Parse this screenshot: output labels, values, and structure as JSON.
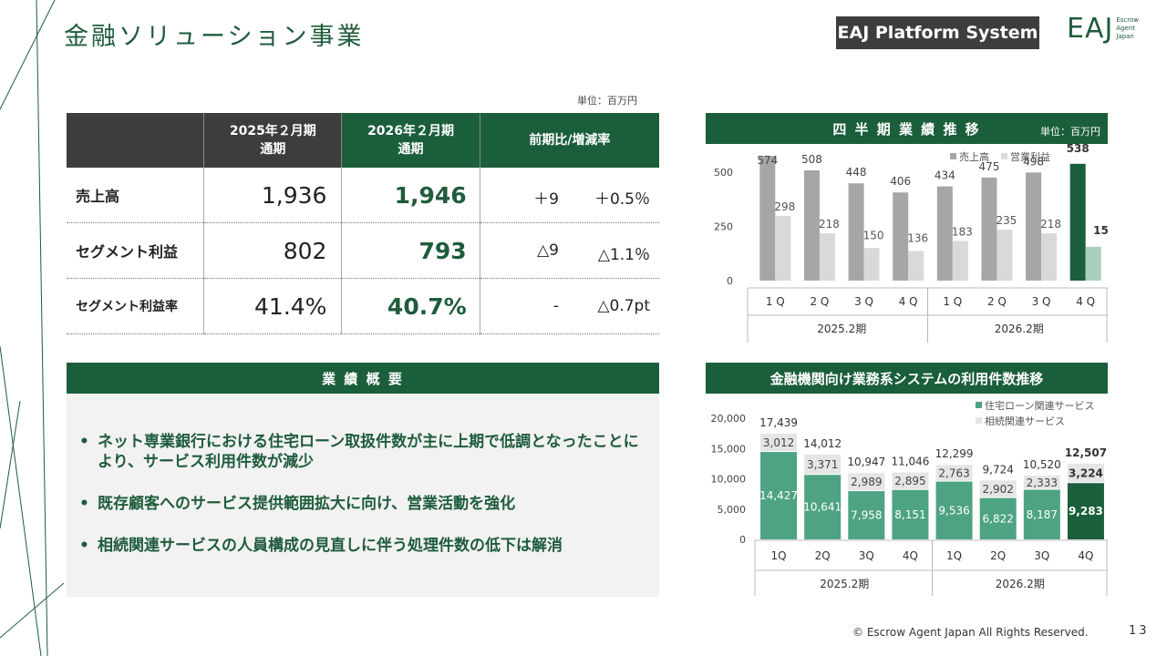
{
  "page": {
    "title": "金融ソリューション事業",
    "badge": "EAJ Platform System",
    "logo": {
      "main": "EAJ",
      "sub1": "Escrow",
      "sub2": "Agent",
      "sub3": "Japan"
    },
    "footer": "© Escrow Agent Japan All Rights Reserved.",
    "page_number": "13"
  },
  "colors": {
    "dark_green": "#1b5e3b",
    "mid_green": "#4da382",
    "pale_green": "#aacfbd",
    "dark_gray": "#3d3d3d",
    "gray": "#a6a6a6",
    "light_gray": "#d9d9d9"
  },
  "table": {
    "unit": "単位：百万円",
    "headers": {
      "col1_line1": "2025年２月期",
      "col1_line2": "通期",
      "col2_line1": "2026年２月期",
      "col2_line2": "通期",
      "col3": "前期比/増減率"
    },
    "rows": [
      {
        "label": "売上高",
        "v2025": "1,936",
        "v2026": "1,946",
        "diff": "＋9",
        "rate": "＋0.5％"
      },
      {
        "label": "セグメント利益",
        "v2025": "802",
        "v2026": "793",
        "diff": "△9",
        "rate": "△1.1％"
      },
      {
        "label": "セグメント利益率",
        "v2025": "41.4%",
        "v2026": "40.7%",
        "diff": "-",
        "rate": "△0.7pt"
      }
    ]
  },
  "summary": {
    "heading": "業 績 概 要",
    "bullet": "•",
    "items": [
      "ネット専業銀行における住宅ローン取扱件数が主に上期で低調となったことにより、サービス利用件数が減少",
      "既存顧客へのサービス提供範囲拡大に向け、営業活動を強化",
      "相続関連サービスの人員構成の見直しに伴う処理件数の低下は解消"
    ]
  },
  "chart1_header": {
    "title": "四 半 期 業 績 推 移",
    "unit": "単位：百万円"
  },
  "chart2_header": {
    "title": "金融機関向け業務系システムの利用件数推移"
  },
  "chart_data": [
    {
      "type": "bar",
      "title": "四 半 期 業 績 推 移",
      "categories": [
        "1Q",
        "2Q",
        "3Q",
        "4Q",
        "1Q",
        "2Q",
        "3Q",
        "4Q"
      ],
      "category_labels": [
        "1 Q",
        "2 Q",
        "3 Q",
        "4 Q",
        "1 Q",
        "2 Q",
        "3 Q",
        "4 Q"
      ],
      "groups": [
        "2025.2期",
        "2026.2期"
      ],
      "series": [
        {
          "name": "売上高",
          "values": [
            574,
            508,
            448,
            406,
            434,
            475,
            498,
            538
          ]
        },
        {
          "name": "営業利益",
          "values": [
            298,
            218,
            150,
            136,
            183,
            235,
            218,
            156
          ]
        }
      ],
      "yticks": [
        "500",
        "250",
        "0"
      ],
      "ylim": [
        0,
        600
      ],
      "legend": "top-right"
    },
    {
      "type": "bar",
      "stacked": true,
      "title": "金融機関向け業務系システムの利用件数推移",
      "categories": [
        "1Q",
        "2Q",
        "3Q",
        "4Q",
        "1Q",
        "2Q",
        "3Q",
        "4Q"
      ],
      "groups": [
        "2025.2期",
        "2026.2期"
      ],
      "series": [
        {
          "name": "住宅ローン関連サービス",
          "values": [
            14427,
            10641,
            7958,
            8151,
            9536,
            6822,
            8187,
            9283
          ],
          "labels": [
            "14,427",
            "10,641",
            "7,958",
            "8,151",
            "9,536",
            "6,822",
            "8,187",
            "9,283"
          ]
        },
        {
          "name": "相続関連サービス",
          "values": [
            3012,
            3371,
            2989,
            2895,
            2763,
            2902,
            2333,
            3224
          ],
          "labels": [
            "3,012",
            "3,371",
            "2,989",
            "2,895",
            "2,763",
            "2,902",
            "2,333",
            "3,224"
          ]
        }
      ],
      "totals": [
        17439,
        14012,
        10947,
        11046,
        12299,
        9724,
        10520,
        12507
      ],
      "total_labels": [
        "17,439",
        "14,012",
        "10,947",
        "11,046",
        "12,299",
        "9,724",
        "10,520",
        "12,507"
      ],
      "yticks": [
        "20,000",
        "15,000",
        "10,000",
        "5,000",
        "0"
      ],
      "ylim": [
        0,
        20000
      ],
      "legend": "top-right"
    }
  ]
}
